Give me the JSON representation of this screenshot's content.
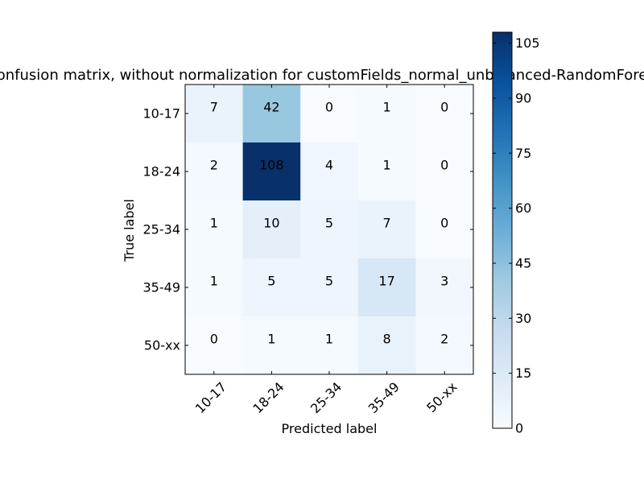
{
  "chart_data": {
    "type": "heatmap",
    "title": "Confusion matrix, without normalization for customFields_normal_unbalanced-RandomForest",
    "xlabel": "Predicted label",
    "ylabel": "True label",
    "x_categories": [
      "10-17",
      "18-24",
      "25-34",
      "35-49",
      "50-xx"
    ],
    "y_categories": [
      "10-17",
      "18-24",
      "25-34",
      "35-49",
      "50-xx"
    ],
    "values": [
      [
        7,
        42,
        0,
        1,
        0
      ],
      [
        2,
        108,
        4,
        1,
        0
      ],
      [
        1,
        10,
        5,
        7,
        0
      ],
      [
        1,
        5,
        5,
        17,
        3
      ],
      [
        0,
        1,
        1,
        8,
        2
      ]
    ],
    "colormap": "Blues",
    "vmin": 0,
    "vmax": 108,
    "colorbar_ticks": [
      0,
      15,
      30,
      45,
      60,
      75,
      90,
      105
    ],
    "text_color_light": "#ffffff",
    "text_color_dark": "#000000"
  }
}
